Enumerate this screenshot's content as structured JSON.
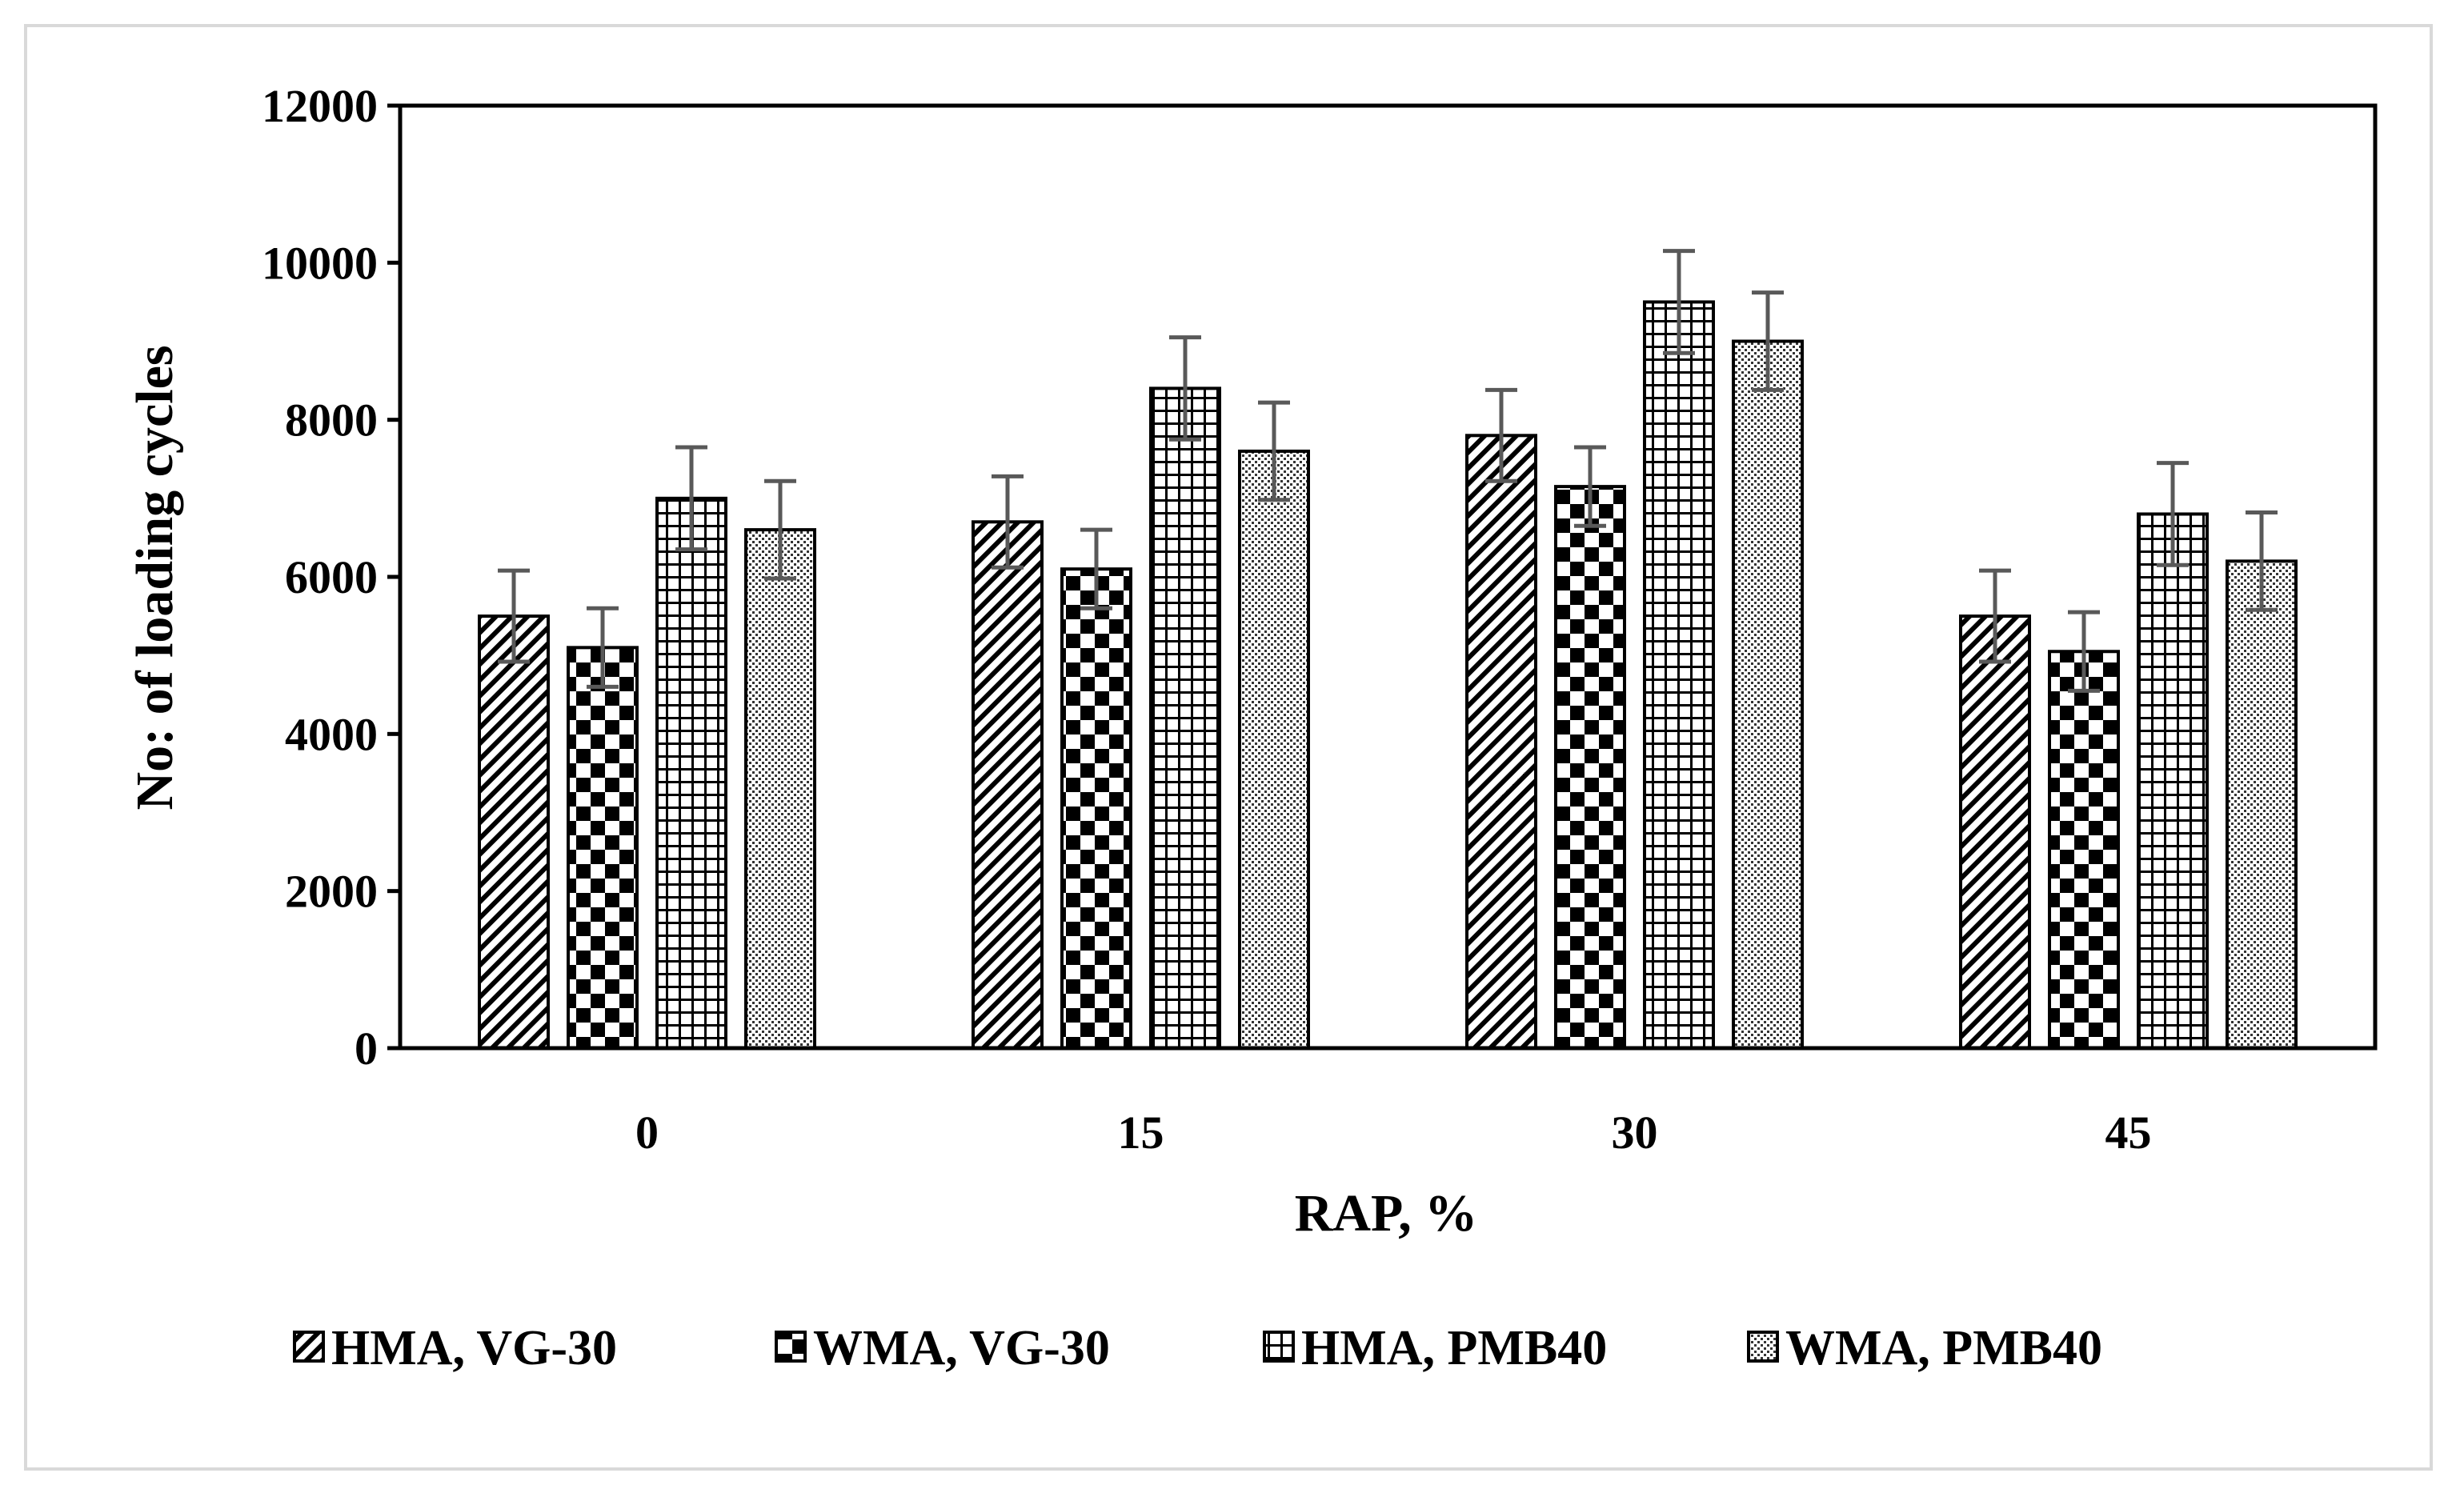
{
  "chart_data": {
    "type": "bar",
    "title": "",
    "xlabel": "RAP, %",
    "ylabel": "No: of loading cycles",
    "categories": [
      "0",
      "15",
      "30",
      "45"
    ],
    "ylim": [
      0,
      12000
    ],
    "yticks": [
      "0",
      "2000",
      "4000",
      "6000",
      "8000",
      "10000",
      "12000"
    ],
    "grid": false,
    "legend_position": "bottom",
    "series": [
      {
        "name": "HMA, VG-30",
        "pattern": "diagonal",
        "values": [
          5500,
          6700,
          7800,
          5500
        ],
        "errors": [
          580,
          580,
          580,
          580
        ]
      },
      {
        "name": "WMA, VG-30",
        "pattern": "checker",
        "values": [
          5100,
          6100,
          7150,
          5050
        ],
        "errors": [
          500,
          500,
          500,
          500
        ]
      },
      {
        "name": "HMA, PMB40",
        "pattern": "grid",
        "values": [
          7000,
          8400,
          9500,
          6800
        ],
        "errors": [
          650,
          650,
          650,
          650
        ]
      },
      {
        "name": "WMA, PMB40",
        "pattern": "dots",
        "values": [
          6600,
          7600,
          9000,
          6200
        ],
        "errors": [
          620,
          620,
          620,
          620
        ]
      }
    ]
  },
  "colors": {
    "bar_outline": "#000000",
    "error_bar": "#595959",
    "frame": "#d9d9d9"
  }
}
